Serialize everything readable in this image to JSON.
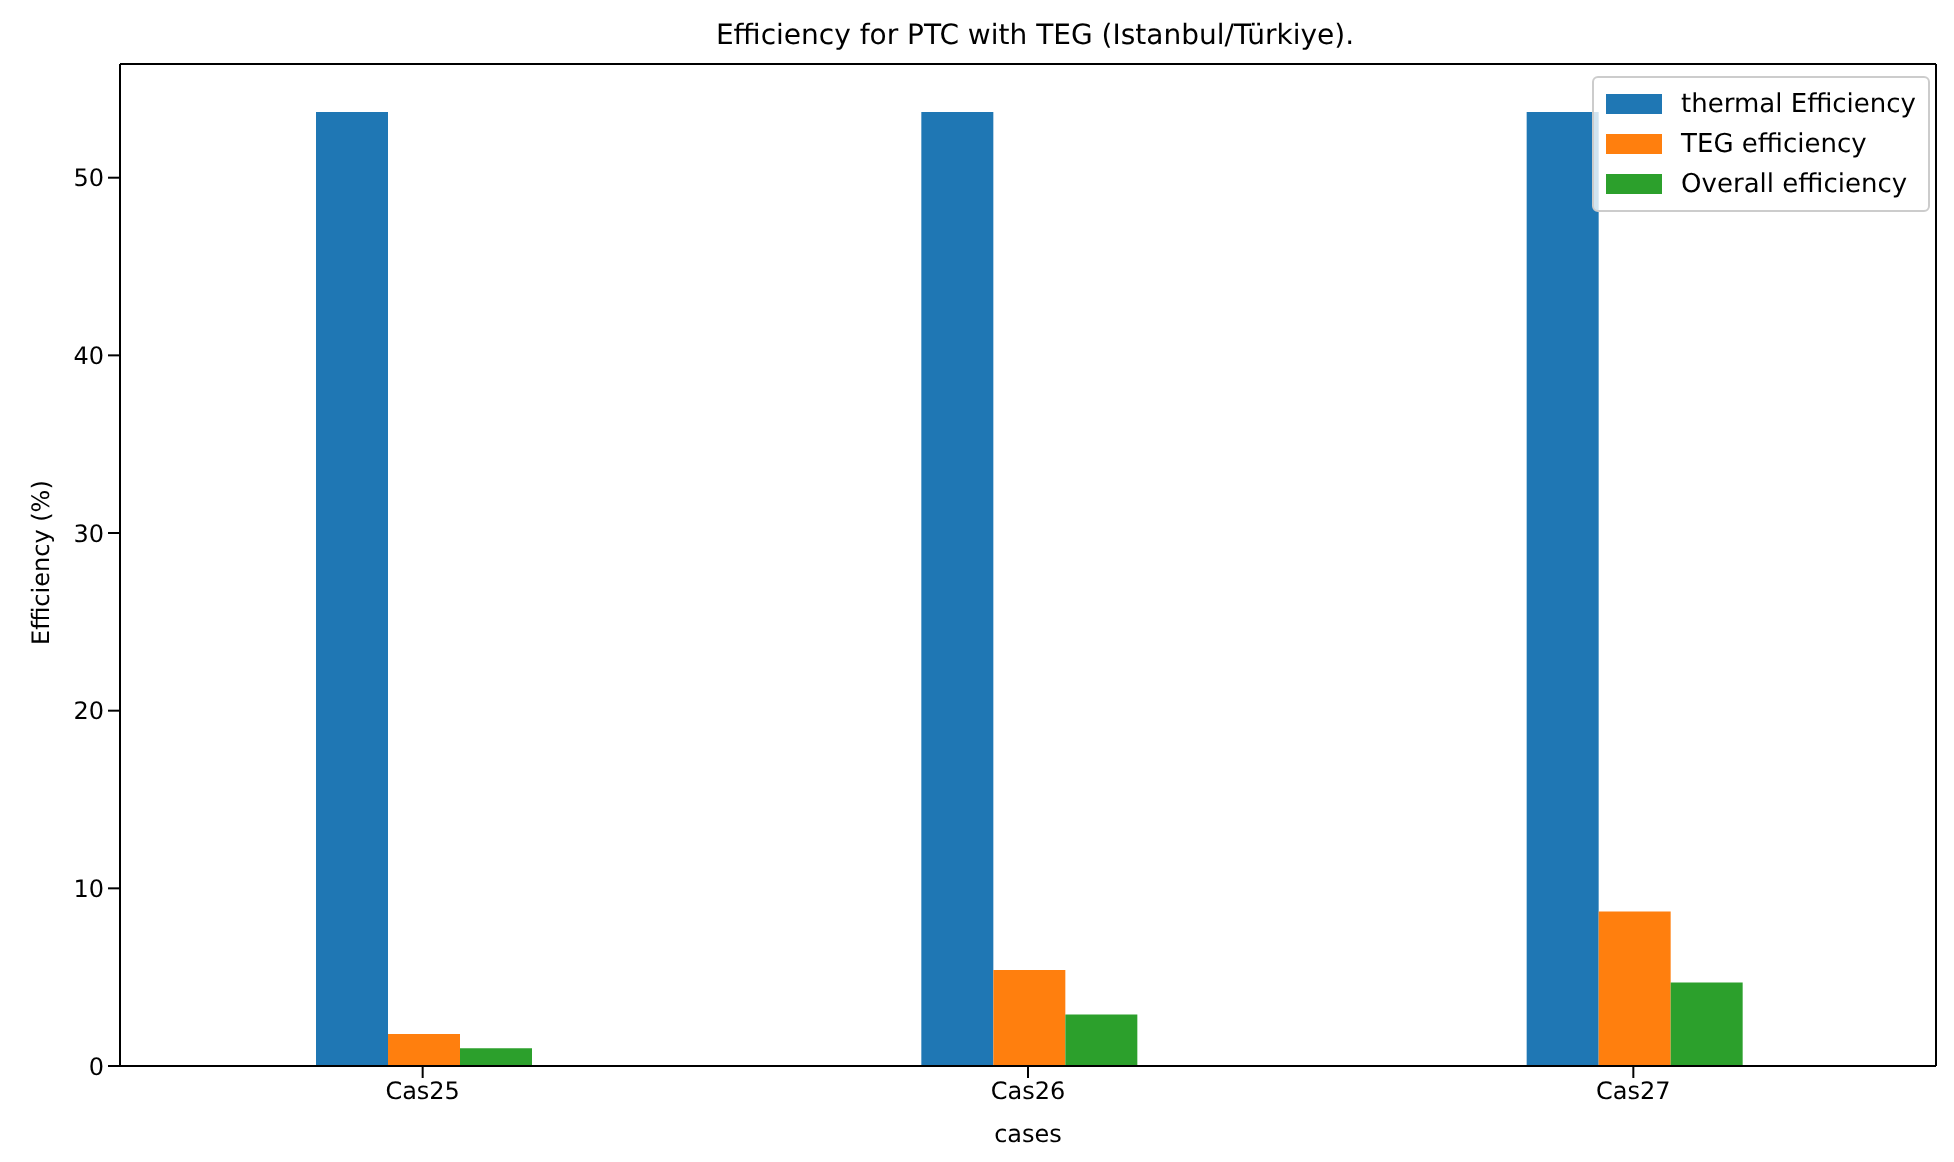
{
  "chart_data": {
    "type": "bar",
    "title": "Efficiency for PTC with TEG (Istanbul/Türkiye).",
    "xlabel": "cases",
    "ylabel": "Efficiency (%)",
    "categories": [
      "Cas25",
      "Cas26",
      "Cas27"
    ],
    "series": [
      {
        "name": "thermal Efficiency",
        "color": "#1f77b4",
        "values": [
          53.7,
          53.7,
          53.7
        ]
      },
      {
        "name": "TEG efficiency",
        "color": "#ff7f0e",
        "values": [
          1.8,
          5.4,
          8.7
        ]
      },
      {
        "name": "Overall efficiency",
        "color": "#2ca02c",
        "values": [
          1.0,
          2.9,
          4.7
        ]
      }
    ],
    "ylim": [
      0,
      56.4
    ],
    "yticks": [
      0,
      10,
      20,
      30,
      40,
      50
    ],
    "grid": false,
    "legend": "top right"
  }
}
